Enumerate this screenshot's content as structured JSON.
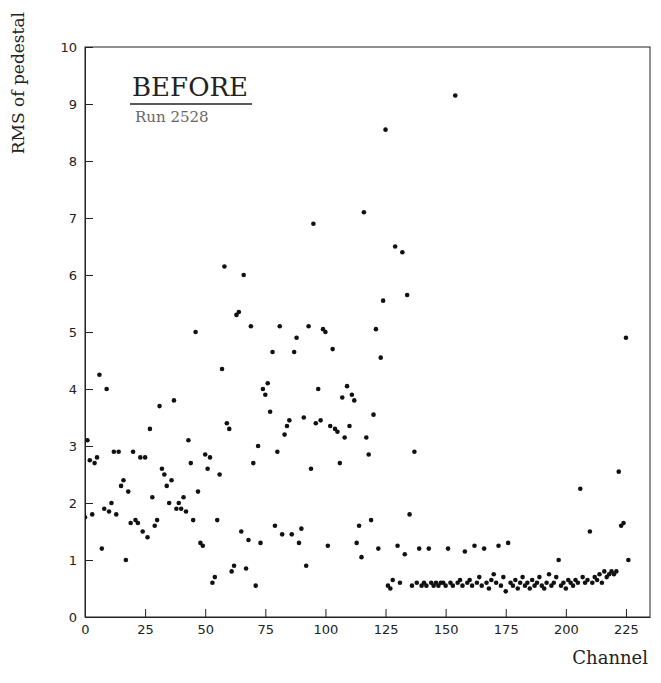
{
  "chart_data": {
    "type": "scatter",
    "title": "BEFORE",
    "subtitle": "Run 2528",
    "x_label": "Channel",
    "y_label": "RMS of pedestal",
    "x": [
      0,
      1,
      2,
      3,
      4,
      5,
      6,
      7,
      8,
      9,
      10,
      11,
      12,
      13,
      14,
      15,
      16,
      17,
      18,
      19,
      20,
      21,
      22,
      23,
      24,
      25,
      26,
      27,
      28,
      29,
      30,
      31,
      32,
      33,
      34,
      35,
      36,
      37,
      38,
      39,
      40,
      41,
      42,
      43,
      44,
      45,
      46,
      47,
      48,
      49,
      50,
      51,
      52,
      53,
      54,
      55,
      56,
      57,
      58,
      59,
      60,
      61,
      62,
      63,
      64,
      65,
      66,
      67,
      68,
      69,
      70,
      71,
      72,
      73,
      74,
      75,
      76,
      77,
      78,
      79,
      80,
      81,
      82,
      83,
      84,
      85,
      86,
      87,
      88,
      89,
      90,
      91,
      92,
      93,
      94,
      95,
      96,
      97,
      98,
      99,
      100,
      101,
      102,
      103,
      104,
      105,
      106,
      107,
      108,
      109,
      110,
      111,
      112,
      113,
      114,
      115,
      116,
      117,
      118,
      119,
      120,
      121,
      122,
      123,
      124,
      125,
      126,
      127,
      128,
      129,
      130,
      131,
      132,
      133,
      134,
      135,
      136,
      137,
      138,
      139,
      140,
      141,
      142,
      143,
      144,
      145,
      146,
      147,
      148,
      149,
      150,
      151,
      152,
      153,
      154,
      155,
      156,
      157,
      158,
      159,
      160,
      161,
      162,
      163,
      164,
      165,
      166,
      167,
      168,
      169,
      170,
      171,
      172,
      173,
      174,
      175,
      176,
      177,
      178,
      179,
      180,
      181,
      182,
      183,
      184,
      185,
      186,
      187,
      188,
      189,
      190,
      191,
      192,
      193,
      194,
      195,
      196,
      197,
      198,
      199,
      200,
      201,
      202,
      203,
      204,
      205,
      206,
      207,
      208,
      209,
      210,
      211,
      212,
      213,
      214,
      215,
      216,
      217,
      218,
      219,
      220,
      221,
      222,
      223,
      224,
      225,
      226
    ],
    "values": [
      1.75,
      3.1,
      2.75,
      1.8,
      2.7,
      2.8,
      4.25,
      1.2,
      1.9,
      4.0,
      1.85,
      2.0,
      2.9,
      1.8,
      2.9,
      2.3,
      2.4,
      1.0,
      2.2,
      1.65,
      2.9,
      1.7,
      1.65,
      2.8,
      1.5,
      2.8,
      1.4,
      3.3,
      2.1,
      1.6,
      1.7,
      3.7,
      2.6,
      2.5,
      2.3,
      2.0,
      2.4,
      3.8,
      1.9,
      2.0,
      1.9,
      2.1,
      1.85,
      3.1,
      2.7,
      1.7,
      5.0,
      2.2,
      1.3,
      1.25,
      2.85,
      2.6,
      2.8,
      0.6,
      0.7,
      1.7,
      2.5,
      4.35,
      6.15,
      3.4,
      3.3,
      0.8,
      0.9,
      5.3,
      5.35,
      1.5,
      6.0,
      0.85,
      1.35,
      5.1,
      2.7,
      0.55,
      3.0,
      1.3,
      4.0,
      3.9,
      4.1,
      3.6,
      4.65,
      1.6,
      2.9,
      5.1,
      1.45,
      3.2,
      3.35,
      3.45,
      1.45,
      4.65,
      4.9,
      1.3,
      1.55,
      3.5,
      0.9,
      5.1,
      2.6,
      6.9,
      3.4,
      4.0,
      3.45,
      5.05,
      5.0,
      1.25,
      3.35,
      4.7,
      3.3,
      3.25,
      2.7,
      3.85,
      3.15,
      4.05,
      3.35,
      3.9,
      3.8,
      1.3,
      1.6,
      1.05,
      7.1,
      3.15,
      2.85,
      1.7,
      3.55,
      5.05,
      1.2,
      4.55,
      5.55,
      8.55,
      0.55,
      0.5,
      0.65,
      6.5,
      1.25,
      0.6,
      6.4,
      1.1,
      5.65,
      1.8,
      0.55,
      2.9,
      0.6,
      1.2,
      0.55,
      0.6,
      0.55,
      1.2,
      0.6,
      0.55,
      0.6,
      0.55,
      0.6,
      0.6,
      0.55,
      1.2,
      0.6,
      0.55,
      9.15,
      0.6,
      0.65,
      0.55,
      1.15,
      0.6,
      0.65,
      0.55,
      1.25,
      0.6,
      0.7,
      0.55,
      1.2,
      0.6,
      0.5,
      0.65,
      0.75,
      0.6,
      1.25,
      0.55,
      0.7,
      0.45,
      1.3,
      0.6,
      0.55,
      0.65,
      0.5,
      0.6,
      0.7,
      0.55,
      0.6,
      0.5,
      0.65,
      0.55,
      0.6,
      0.7,
      0.55,
      0.5,
      0.6,
      0.75,
      0.55,
      0.6,
      0.7,
      1.0,
      0.55,
      0.6,
      0.5,
      0.65,
      0.6,
      0.55,
      0.65,
      0.6,
      2.25,
      0.7,
      0.6,
      0.65,
      1.5,
      0.6,
      0.7,
      0.65,
      0.75,
      0.6,
      0.8,
      0.7,
      0.75,
      0.8,
      0.75,
      0.8,
      2.55,
      1.6,
      1.65,
      4.9,
      1.0
    ],
    "color": "#111111",
    "marker": "circle",
    "xlim": [
      0,
      235
    ],
    "xticks": [
      0,
      25,
      50,
      75,
      100,
      125,
      150,
      175,
      200,
      225
    ],
    "ylim": [
      0,
      10
    ],
    "yticks": [
      0,
      1,
      2,
      3,
      4,
      5,
      6,
      7,
      8,
      9,
      10
    ]
  }
}
